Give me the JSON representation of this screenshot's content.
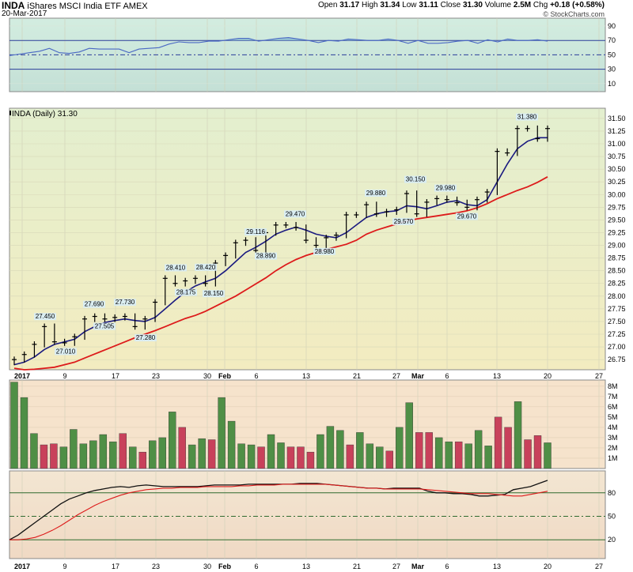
{
  "header": {
    "symbol": "INDA",
    "name": "iShares MSCI India ETF",
    "exchange": "AMEX",
    "date": "20-Mar-2017",
    "credit": "© StockCharts.com",
    "open_label": "Open",
    "open": "31.17",
    "high_label": "High",
    "high": "31.34",
    "low_label": "Low",
    "low": "31.11",
    "close_label": "Close",
    "close": "31.30",
    "volume_label": "Volume",
    "volume": "2.5M",
    "chg_label": "Chg",
    "chg": "+0.18 (+0.58%)"
  },
  "price_panel_label": "INDA (Daily) 31.30",
  "colors": {
    "rsi_bg": "#c9e7d3",
    "price_bg_top": "#e3efcf",
    "price_bg_bottom": "#f3ecc0",
    "lower_bg": "#f3dcc5",
    "volume_bg": "#f6e3cc",
    "fast_ma": "#1a1a80",
    "slow_ma": "#dd1b1b",
    "vol_up": "#4f8f46",
    "vol_down": "#c8415b",
    "rsi_line": "#4a68c4"
  },
  "chart_data": [
    {
      "type": "line",
      "panel": "rsi-indicator",
      "ylim": [
        0,
        100
      ],
      "ticks": [
        "90",
        "70",
        "50",
        "30",
        "10"
      ],
      "reference_lines": [
        70,
        50,
        30
      ],
      "values": [
        49,
        51,
        53,
        55,
        59,
        53,
        52,
        54,
        59,
        58,
        58,
        58,
        53,
        58,
        59,
        60,
        65,
        68,
        67,
        67,
        69,
        69,
        71,
        73,
        73,
        69,
        71,
        73,
        74,
        72,
        70,
        67,
        70,
        69,
        72,
        71,
        70,
        70,
        72,
        70,
        66,
        70,
        66,
        66,
        67,
        69,
        70,
        66,
        71,
        68,
        72,
        70,
        70,
        71,
        69
      ]
    },
    {
      "type": "ohlc",
      "panel": "price",
      "ylim": [
        26.55,
        31.7
      ],
      "y_ticks": [
        "31.50",
        "31.25",
        "31.00",
        "30.75",
        "30.50",
        "30.25",
        "30.00",
        "29.75",
        "29.50",
        "29.25",
        "29.00",
        "28.75",
        "28.50",
        "28.25",
        "28.00",
        "27.75",
        "27.50",
        "27.25",
        "27.00",
        "26.75"
      ],
      "x_ticks": [
        "2017",
        "9",
        "17",
        "23",
        "30",
        "Feb",
        "6",
        "13",
        "21",
        "27",
        "Mar",
        "6",
        "13",
        "20",
        "27"
      ],
      "close": [
        26.75,
        26.85,
        27.05,
        27.4,
        27.1,
        27.08,
        27.2,
        27.55,
        27.6,
        27.55,
        27.58,
        27.6,
        27.4,
        27.55,
        27.88,
        28.35,
        28.25,
        28.3,
        28.35,
        28.25,
        28.65,
        28.8,
        29.05,
        29.1,
        28.9,
        29.25,
        29.4,
        29.4,
        29.35,
        29.1,
        29.0,
        29.15,
        29.2,
        29.6,
        29.6,
        29.8,
        29.62,
        29.66,
        29.7,
        30.02,
        29.62,
        29.85,
        29.92,
        29.9,
        29.84,
        29.75,
        29.9,
        30.05,
        30.85,
        30.82,
        31.3,
        31.3,
        31.1,
        31.3
      ],
      "highlights": [
        {
          "label": "27.450",
          "value": 27.45,
          "kind": "high"
        },
        {
          "label": "27.010",
          "value": 27.01,
          "kind": "low"
        },
        {
          "label": "27.690",
          "value": 27.69,
          "kind": "high"
        },
        {
          "label": "27.505",
          "value": 27.505,
          "kind": "low"
        },
        {
          "label": "27.730",
          "value": 27.73,
          "kind": "high"
        },
        {
          "label": "27.280",
          "value": 27.28,
          "kind": "low"
        },
        {
          "label": "28.410",
          "value": 28.41,
          "kind": "high"
        },
        {
          "label": "28.175",
          "value": 28.175,
          "kind": "low"
        },
        {
          "label": "28.420",
          "value": 28.42,
          "kind": "high"
        },
        {
          "label": "28.150",
          "value": 28.15,
          "kind": "low"
        },
        {
          "label": "29.116",
          "value": 29.116,
          "kind": "high"
        },
        {
          "label": "28.890",
          "value": 28.89,
          "kind": "low"
        },
        {
          "label": "29.470",
          "value": 29.47,
          "kind": "high"
        },
        {
          "label": "28.980",
          "value": 28.98,
          "kind": "low"
        },
        {
          "label": "29.880",
          "value": 29.88,
          "kind": "high"
        },
        {
          "label": "30.150",
          "value": 30.15,
          "kind": "high"
        },
        {
          "label": "29.570",
          "value": 29.57,
          "kind": "low"
        },
        {
          "label": "29.980",
          "value": 29.98,
          "kind": "high"
        },
        {
          "label": "29.670",
          "value": 29.67,
          "kind": "low"
        },
        {
          "label": "31.380",
          "value": 31.38,
          "kind": "high"
        }
      ],
      "series": [
        {
          "kind": "fast",
          "values": [
            26.65,
            26.7,
            26.8,
            26.95,
            27.05,
            27.1,
            27.15,
            27.3,
            27.4,
            27.48,
            27.52,
            27.55,
            27.52,
            27.5,
            27.58,
            27.75,
            27.92,
            28.08,
            28.2,
            28.28,
            28.35,
            28.5,
            28.68,
            28.86,
            28.96,
            29.08,
            29.22,
            29.3,
            29.36,
            29.3,
            29.22,
            29.18,
            29.15,
            29.25,
            29.4,
            29.55,
            29.62,
            29.66,
            29.68,
            29.78,
            29.76,
            29.72,
            29.78,
            29.85,
            29.88,
            29.8,
            29.78,
            29.9,
            30.25,
            30.6,
            30.9,
            31.05,
            31.12,
            31.12
          ]
        },
        {
          "kind": "slow",
          "values": [
            26.58,
            26.55,
            26.56,
            26.58,
            26.6,
            26.65,
            26.7,
            26.78,
            26.86,
            26.94,
            27.02,
            27.1,
            27.18,
            27.25,
            27.32,
            27.4,
            27.48,
            27.56,
            27.62,
            27.7,
            27.8,
            27.9,
            28.0,
            28.12,
            28.24,
            28.36,
            28.5,
            28.62,
            28.72,
            28.8,
            28.86,
            28.92,
            28.97,
            29.02,
            29.1,
            29.22,
            29.3,
            29.36,
            29.42,
            29.48,
            29.52,
            29.55,
            29.58,
            29.61,
            29.64,
            29.68,
            29.74,
            29.82,
            29.92,
            30.0,
            30.08,
            30.15,
            30.24,
            30.35
          ]
        }
      ]
    },
    {
      "type": "bar",
      "panel": "volume",
      "ylim": [
        0,
        8.6
      ],
      "y_ticks": [
        "8M",
        "7M",
        "6M",
        "5M",
        "4M",
        "3M",
        "2M",
        "1M"
      ],
      "values": [
        8.4,
        6.9,
        3.4,
        2.3,
        2.4,
        2.1,
        3.8,
        2.4,
        2.7,
        3.3,
        2.6,
        3.4,
        2.1,
        1.6,
        2.7,
        3.0,
        5.5,
        4.0,
        2.3,
        2.9,
        2.8,
        6.9,
        4.6,
        2.4,
        2.3,
        2.1,
        3.3,
        2.5,
        2.1,
        2.1,
        1.6,
        3.3,
        4.1,
        3.7,
        2.3,
        3.5,
        2.4,
        2.1,
        1.7,
        4.0,
        6.4,
        3.5,
        3.5,
        3.0,
        2.6,
        2.6,
        2.4,
        3.7,
        2.2,
        5.0,
        4.0,
        6.5,
        2.8,
        3.2,
        2.5
      ],
      "up": [
        1,
        1,
        1,
        0,
        0,
        1,
        1,
        1,
        1,
        1,
        1,
        0,
        1,
        0,
        1,
        1,
        1,
        0,
        1,
        1,
        0,
        1,
        1,
        1,
        1,
        0,
        1,
        1,
        0,
        0,
        0,
        1,
        1,
        1,
        0,
        1,
        1,
        1,
        0,
        1,
        1,
        0,
        0,
        1,
        1,
        0,
        1,
        1,
        1,
        0,
        0,
        1,
        0,
        0,
        1
      ]
    },
    {
      "type": "line",
      "panel": "lower-indicator",
      "ylim": [
        0,
        100
      ],
      "ticks": [
        "80",
        "50",
        "20"
      ],
      "reference_lines": [
        80,
        50,
        20
      ],
      "series": [
        {
          "kind": "fast",
          "values": [
            20,
            26,
            34,
            42,
            50,
            58,
            66,
            72,
            76,
            80,
            83,
            85,
            87,
            88,
            87,
            89,
            90,
            89,
            88,
            88,
            88,
            88,
            88,
            89,
            90,
            90,
            90,
            90,
            91,
            91,
            91,
            91,
            91,
            91,
            92,
            92,
            92,
            91,
            90,
            89,
            88,
            87,
            86,
            86,
            85,
            86,
            86,
            86,
            86,
            82,
            80,
            80,
            79,
            79,
            78,
            76,
            76,
            77,
            78,
            84,
            86,
            88,
            92,
            96
          ]
        },
        {
          "kind": "slow",
          "values": [
            20,
            20,
            21,
            23,
            27,
            32,
            38,
            45,
            52,
            58,
            64,
            69,
            73,
            77,
            80,
            82,
            84,
            85,
            86,
            86,
            87,
            87,
            87,
            88,
            88,
            88,
            88,
            89,
            89,
            90,
            90,
            90,
            91,
            91,
            91,
            91,
            91,
            91,
            90,
            89,
            88,
            87,
            86,
            86,
            85,
            85,
            85,
            85,
            85,
            84,
            83,
            82,
            81,
            80,
            79,
            79,
            79,
            78,
            77,
            76,
            76,
            78,
            80,
            82
          ]
        }
      ]
    }
  ]
}
